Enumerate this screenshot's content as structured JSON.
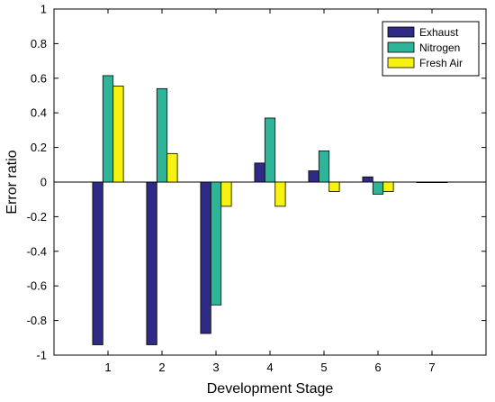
{
  "chart_data": {
    "type": "bar",
    "title": "",
    "xlabel": "Development Stage",
    "ylabel": "Error ratio",
    "categories": [
      "1",
      "2",
      "3",
      "4",
      "5",
      "6",
      "7"
    ],
    "ylim": [
      -1,
      1
    ],
    "yticks": [
      "-1",
      "-0.8",
      "-0.6",
      "-0.4",
      "-0.2",
      "0",
      "0.2",
      "0.4",
      "0.6",
      "0.8",
      "1"
    ],
    "grid": false,
    "legend_position": "top-right",
    "series": [
      {
        "name": "Exhaust",
        "color": "#2e2a86",
        "values": [
          -0.94,
          -0.94,
          -0.875,
          0.11,
          0.065,
          0.03,
          0.0
        ]
      },
      {
        "name": "Nitrogen",
        "color": "#2fb49a",
        "values": [
          0.615,
          0.54,
          -0.71,
          0.37,
          0.18,
          -0.07,
          0.0
        ]
      },
      {
        "name": "Fresh Air",
        "color": "#f7f20f",
        "values": [
          0.555,
          0.165,
          -0.14,
          -0.14,
          -0.055,
          -0.055,
          0.0
        ]
      }
    ]
  }
}
